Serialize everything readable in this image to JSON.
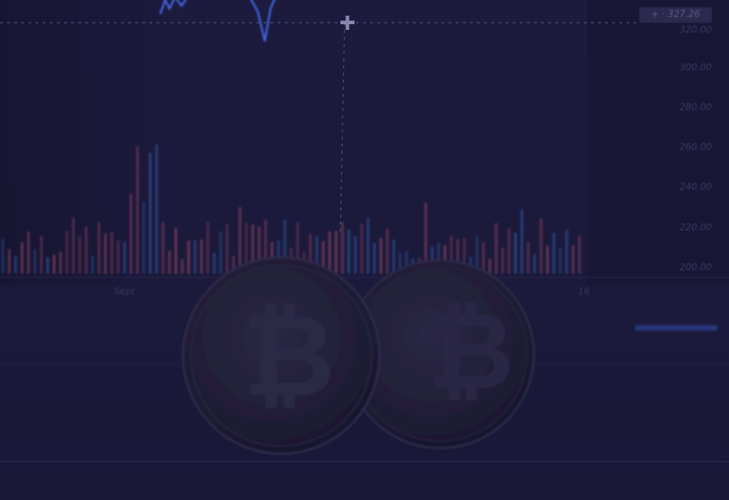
{
  "price_readout": "327.26",
  "price_readout_prefix": "+ ·",
  "y_axis_labels": [
    "320.00",
    "300.00",
    "280.00",
    "260.00",
    "240.00",
    "220.00",
    "200.00"
  ],
  "x_axis_labels": [
    "Sept",
    "16"
  ],
  "colors": {
    "background": "#1a1838",
    "up_candle": "#2b4a8a",
    "down_candle": "#7a3a5a",
    "price_line": "#3d62d6",
    "crosshair": "#8f8fb8"
  },
  "icons": [
    "crosshair-icon",
    "bitcoin-coin-front",
    "bitcoin-coin-back"
  ]
}
